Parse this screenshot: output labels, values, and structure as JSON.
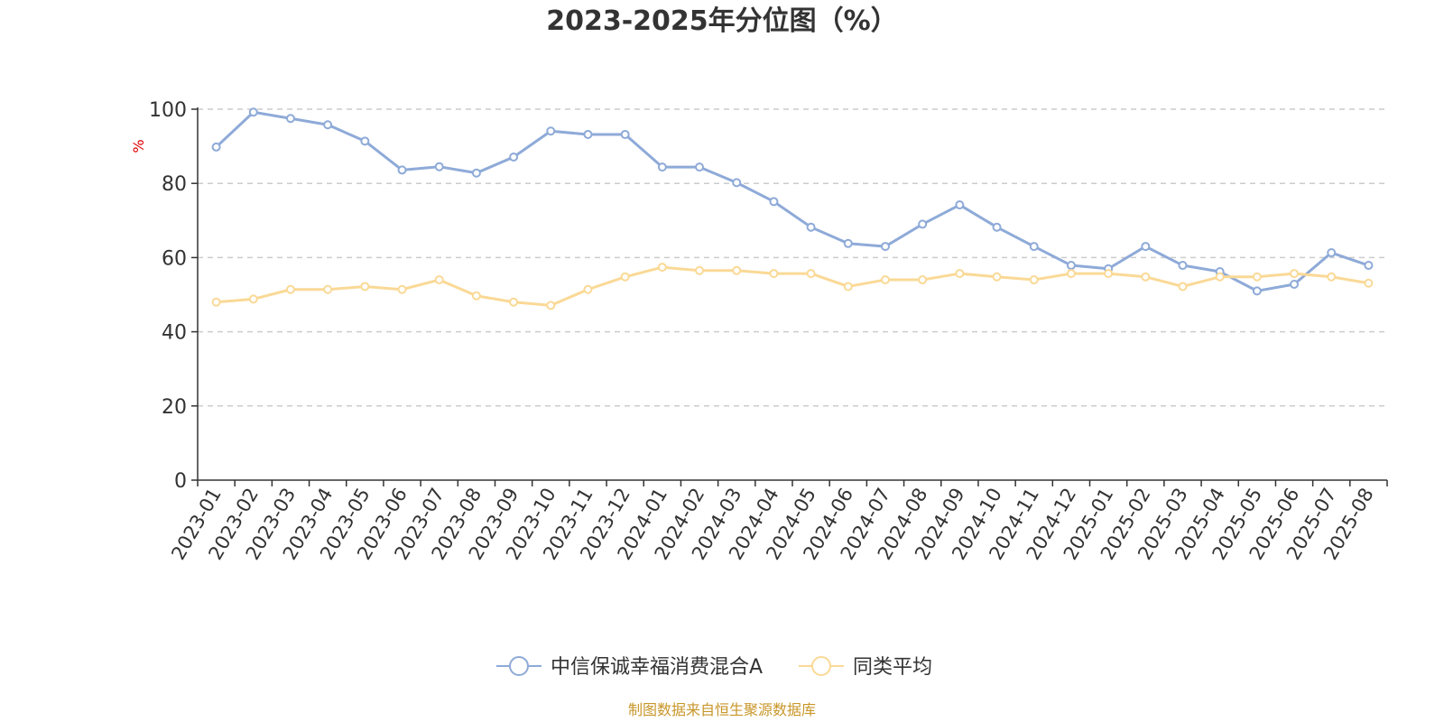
{
  "chart_data": {
    "type": "line",
    "title": "2023-2025年分位图（%）",
    "ylabel": "%",
    "ylim": [
      0,
      100
    ],
    "yticks": [
      0,
      20,
      40,
      60,
      80,
      100
    ],
    "grid": "horizontal dashed",
    "legend_position": "bottom",
    "categories": [
      "2023-01",
      "2023-02",
      "2023-03",
      "2023-04",
      "2023-05",
      "2023-06",
      "2023-07",
      "2023-08",
      "2023-09",
      "2023-10",
      "2023-11",
      "2023-12",
      "2024-01",
      "2024-02",
      "2024-03",
      "2024-04",
      "2024-05",
      "2024-06",
      "2024-07",
      "2024-08",
      "2024-09",
      "2024-10",
      "2024-11",
      "2024-12",
      "2025-01",
      "2025-02",
      "2025-03",
      "2025-04",
      "2025-05",
      "2025-06",
      "2025-07",
      "2025-08"
    ],
    "series": [
      {
        "name": "中信保诚幸福消费混合A",
        "color": "#8eaad8",
        "values": [
          89.8,
          99.2,
          97.5,
          95.8,
          91.4,
          83.6,
          84.5,
          82.8,
          87.1,
          94.1,
          93.2,
          93.2,
          84.4,
          84.4,
          80.2,
          75.1,
          68.2,
          63.8,
          63.0,
          69.0,
          74.2,
          68.2,
          63.0,
          57.9,
          57.0,
          63.0,
          57.9,
          56.2,
          51.0,
          52.8,
          61.3,
          57.9
        ]
      },
      {
        "name": "同类平均",
        "color": "#fad996",
        "values": [
          48.0,
          48.8,
          51.4,
          51.4,
          52.2,
          51.4,
          54.0,
          49.7,
          48.0,
          47.1,
          51.4,
          54.8,
          57.4,
          56.5,
          56.5,
          55.7,
          55.7,
          52.2,
          54.0,
          54.0,
          55.7,
          54.8,
          54.0,
          55.7,
          55.7,
          54.8,
          52.2,
          54.8,
          54.8,
          55.7,
          54.8,
          53.1
        ]
      }
    ]
  },
  "source_note": "制图数据来自恒生聚源数据库"
}
